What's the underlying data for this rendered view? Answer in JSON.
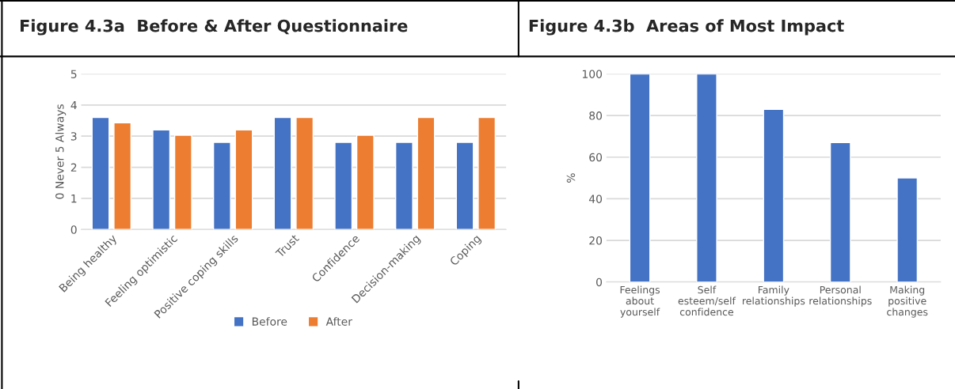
{
  "chart_data": [
    {
      "type": "bar",
      "title": "Figure 4.3a  Before & After Questionnaire",
      "ylabel": "0 Never 5 Always",
      "categories": [
        "Being healthy",
        "Feeling optimistic",
        "Positive coping skills",
        "Trust",
        "Confidence",
        "Decision-making",
        "Coping"
      ],
      "series": [
        {
          "name": "Before",
          "color": "#4472c4",
          "values": [
            3.6,
            3.2,
            2.8,
            3.6,
            2.8,
            2.8,
            2.8
          ]
        },
        {
          "name": "After",
          "color": "#ed7d31",
          "values": [
            3.43,
            3.03,
            3.2,
            3.6,
            3.03,
            3.6,
            3.6
          ]
        }
      ],
      "ylim": [
        0,
        5
      ],
      "yticks": [
        0,
        1,
        2,
        3,
        4,
        5
      ],
      "grid": "y",
      "legend": "bottom"
    },
    {
      "type": "bar",
      "title": "Figure 4.3b  Areas of Most Impact",
      "ylabel": "%",
      "categories": [
        "Feelings\nabout\nyourself",
        "Self\nesteem/self\nconfidence",
        "Family\nrelationships",
        "Personal\nrelationships",
        "Making\npositive\nchanges"
      ],
      "values": [
        100,
        100,
        83,
        67,
        50
      ],
      "color": "#4472c4",
      "ylim": [
        0,
        100
      ],
      "yticks": [
        0,
        20,
        40,
        60,
        80,
        100
      ],
      "grid": "y"
    }
  ]
}
